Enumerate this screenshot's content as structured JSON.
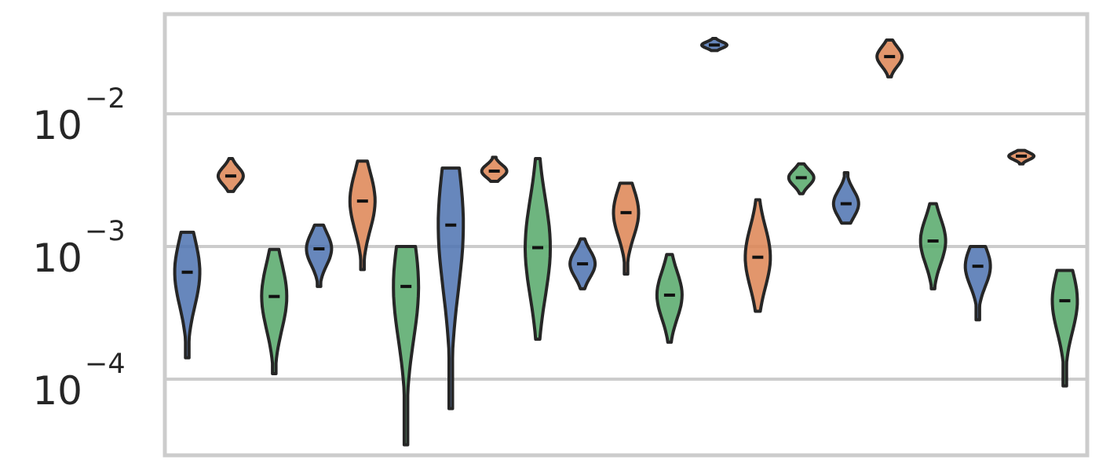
{
  "chart_data": {
    "type": "violin",
    "title": "",
    "xlabel": "",
    "ylabel": "",
    "yscale": "log",
    "ylim": [
      2e-05,
      0.06
    ],
    "grid": true,
    "legend": "none",
    "y_ticks": [
      {
        "value": 0.0001,
        "base": "10",
        "exp": "−4"
      },
      {
        "value": 0.001,
        "base": "10",
        "exp": "−3"
      },
      {
        "value": 0.01,
        "base": "10",
        "exp": "−2"
      }
    ],
    "colors": {
      "blue": "#4c72b0",
      "orange": "#dd8452",
      "green": "#55a868",
      "edge": "#262626",
      "grid": "#cccccc",
      "frame": "#cccccc"
    },
    "groups": [
      {
        "violins": [
          {
            "color": "blue",
            "min": 0.000145,
            "max": 0.00128,
            "median": 0.00064
          },
          {
            "color": "orange",
            "min": 0.0026,
            "max": 0.0046,
            "median": 0.0034
          },
          {
            "color": "green",
            "min": 0.00011,
            "max": 0.00095,
            "median": 0.00042
          }
        ]
      },
      {
        "violins": [
          {
            "color": "blue",
            "min": 0.0005,
            "max": 0.00145,
            "median": 0.00096
          },
          {
            "color": "orange",
            "min": 0.00067,
            "max": 0.0044,
            "median": 0.0022
          },
          {
            "color": "green",
            "min": 3.2e-05,
            "max": 0.001,
            "median": 0.0005
          }
        ]
      },
      {
        "violins": [
          {
            "color": "blue",
            "min": 6e-05,
            "max": 0.0039,
            "median": 0.00145
          },
          {
            "color": "orange",
            "min": 0.0031,
            "max": 0.0047,
            "median": 0.0037
          },
          {
            "color": "green",
            "min": 0.0002,
            "max": 0.0046,
            "median": 0.00098
          }
        ]
      },
      {
        "violins": [
          {
            "color": "blue",
            "min": 0.00048,
            "max": 0.00114,
            "median": 0.00074
          },
          {
            "color": "orange",
            "min": 0.00062,
            "max": 0.003,
            "median": 0.0018
          },
          {
            "color": "green",
            "min": 0.00019,
            "max": 0.00087,
            "median": 0.00043
          }
        ]
      },
      {
        "violins": [
          {
            "color": "blue",
            "min": 0.03,
            "max": 0.037,
            "median": 0.033
          },
          {
            "color": "orange",
            "min": 0.000325,
            "max": 0.00225,
            "median": 0.00083
          },
          {
            "color": "green",
            "min": 0.0025,
            "max": 0.0042,
            "median": 0.0033
          }
        ]
      },
      {
        "violins": [
          {
            "color": "blue",
            "min": 0.0015,
            "max": 0.0036,
            "median": 0.0021
          },
          {
            "color": "orange",
            "min": 0.019,
            "max": 0.036,
            "median": 0.027
          },
          {
            "color": "green",
            "min": 0.00048,
            "max": 0.0021,
            "median": 0.0011
          }
        ]
      },
      {
        "violins": [
          {
            "color": "blue",
            "min": 0.00028,
            "max": 0.001,
            "median": 0.00071
          },
          {
            "color": "orange",
            "min": 0.0042,
            "max": 0.0053,
            "median": 0.0048
          },
          {
            "color": "green",
            "min": 8.9e-05,
            "max": 0.00066,
            "median": 0.00039
          }
        ]
      }
    ]
  }
}
